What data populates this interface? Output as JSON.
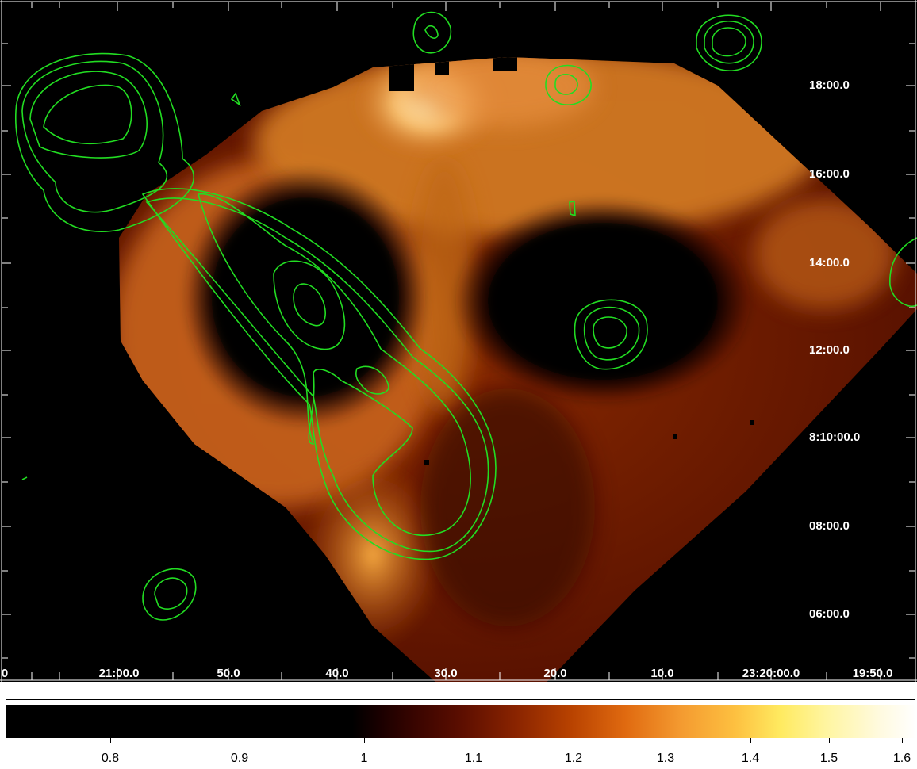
{
  "ra_labels": [
    "0",
    "21:00.0",
    "50.0",
    "40.0",
    "30.0",
    "20.0",
    "10.0",
    "23:20:00.0",
    "19:50.0"
  ],
  "dec_labels": [
    "18:00.0",
    "16:00.0",
    "14:00.0",
    "12:00.0",
    "8:10:00.0",
    "08:00.0",
    "06:00.0"
  ],
  "colorbar_labels": [
    "0.8",
    "0.9",
    "1",
    "1.1",
    "1.2",
    "1.3",
    "1.4",
    "1.5",
    "1.6"
  ],
  "colors": {
    "background": "#000000",
    "contour": "#22dd22",
    "emission_dark": "#5a1000",
    "emission_mid": "#c85a10",
    "emission_bright": "#ffe8a0"
  }
}
